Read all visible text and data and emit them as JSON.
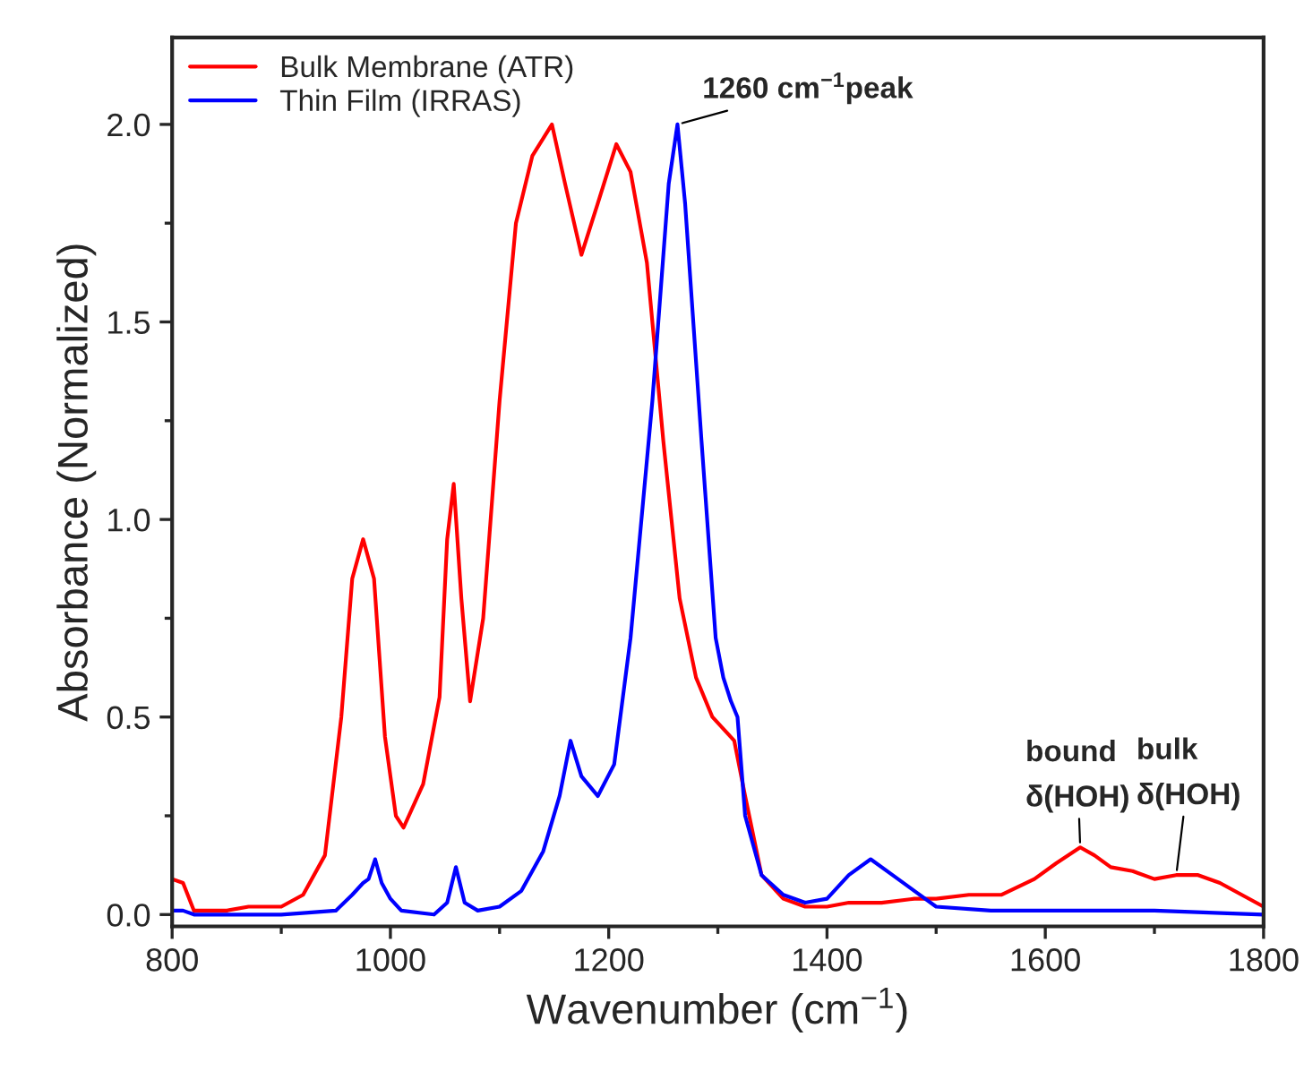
{
  "chart_data": {
    "type": "line",
    "xlabel": "Wavenumber (cm$^{−1}$)",
    "ylabel": "Absorbance (Normalized)",
    "xlim": [
      800,
      1800
    ],
    "xticks": [
      800,
      1000,
      1200,
      1400,
      1600,
      1800
    ],
    "ylim": [
      -0.03,
      2.22
    ],
    "yticks": [
      {
        "value": 0,
        "label": "0.0"
      },
      0.5,
      {
        "value": 1,
        "label": "1.0"
      },
      1.5,
      {
        "value": 2,
        "label": "2.0"
      }
    ],
    "grid": false,
    "legend": "top left",
    "line_style": "solid",
    "marker": "none",
    "series": [
      {
        "name": "Bulk Membrane (ATR)",
        "color": "#ff0000",
        "x": [
          800,
          810,
          820,
          850,
          870,
          900,
          920,
          940,
          955,
          965,
          975,
          985,
          995,
          1005,
          1012,
          1030,
          1045,
          1052,
          1058,
          1065,
          1073,
          1085,
          1100,
          1115,
          1130,
          1148,
          1160,
          1175,
          1190,
          1207,
          1220,
          1235,
          1250,
          1265,
          1280,
          1295,
          1315,
          1325,
          1340,
          1360,
          1380,
          1400,
          1420,
          1450,
          1480,
          1500,
          1530,
          1560,
          1590,
          1610,
          1632,
          1645,
          1660,
          1680,
          1700,
          1720,
          1740,
          1760,
          1780,
          1800
        ],
        "values": [
          0.09,
          0.08,
          0.01,
          0.01,
          0.02,
          0.02,
          0.05,
          0.15,
          0.5,
          0.85,
          0.95,
          0.85,
          0.45,
          0.25,
          0.22,
          0.33,
          0.55,
          0.95,
          1.09,
          0.8,
          0.54,
          0.75,
          1.3,
          1.75,
          1.92,
          2.0,
          1.85,
          1.67,
          1.8,
          1.95,
          1.88,
          1.65,
          1.2,
          0.8,
          0.6,
          0.5,
          0.44,
          0.3,
          0.1,
          0.04,
          0.02,
          0.02,
          0.03,
          0.03,
          0.04,
          0.04,
          0.05,
          0.05,
          0.09,
          0.13,
          0.17,
          0.15,
          0.12,
          0.11,
          0.09,
          0.1,
          0.1,
          0.08,
          0.05,
          0.02
        ]
      },
      {
        "name": "Thin Film (IRRAS)",
        "color": "#0000ff",
        "x": [
          800,
          810,
          820,
          900,
          950,
          965,
          975,
          980,
          986,
          992,
          1000,
          1010,
          1040,
          1052,
          1060,
          1068,
          1080,
          1100,
          1120,
          1140,
          1155,
          1165,
          1175,
          1190,
          1205,
          1220,
          1240,
          1255,
          1263,
          1270,
          1285,
          1298,
          1305,
          1312,
          1318,
          1325,
          1340,
          1360,
          1380,
          1400,
          1420,
          1440,
          1460,
          1480,
          1500,
          1550,
          1600,
          1700,
          1800
        ],
        "values": [
          0.01,
          0.01,
          0.0,
          0.0,
          0.01,
          0.05,
          0.08,
          0.09,
          0.14,
          0.08,
          0.04,
          0.01,
          0.0,
          0.03,
          0.12,
          0.03,
          0.01,
          0.02,
          0.06,
          0.16,
          0.3,
          0.44,
          0.35,
          0.3,
          0.38,
          0.7,
          1.3,
          1.85,
          2.0,
          1.8,
          1.2,
          0.7,
          0.6,
          0.54,
          0.5,
          0.25,
          0.1,
          0.05,
          0.03,
          0.04,
          0.1,
          0.14,
          0.1,
          0.06,
          0.02,
          0.01,
          0.01,
          0.01,
          0.0
        ]
      }
    ],
    "annotations": [
      {
        "text": "1260 cm$^{−1}$peak",
        "x": 1263,
        "y": 2.0
      },
      {
        "text": "bound\nδ(HOH)",
        "x": 1632,
        "y": 0.17
      },
      {
        "text": "bulk\nδ(HOH)",
        "x": 1720,
        "y": 0.1
      }
    ]
  }
}
